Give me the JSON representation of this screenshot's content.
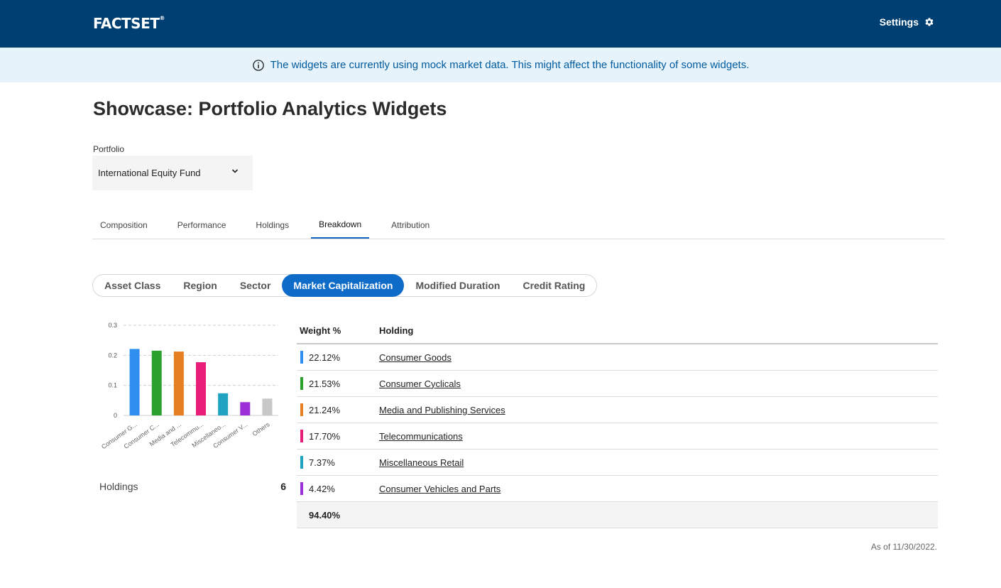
{
  "header": {
    "logo_text": "FACTSET",
    "logo_mark": "®",
    "settings_label": "Settings"
  },
  "banner": {
    "message": "The widgets are currently using mock market data. This might affect the functionality of some widgets."
  },
  "page": {
    "title": "Showcase: Portfolio Analytics Widgets"
  },
  "portfolio": {
    "label": "Portfolio",
    "selected": "International Equity Fund"
  },
  "tabs": [
    {
      "label": "Composition",
      "active": false
    },
    {
      "label": "Performance",
      "active": false
    },
    {
      "label": "Holdings",
      "active": false
    },
    {
      "label": "Breakdown",
      "active": true
    },
    {
      "label": "Attribution",
      "active": false
    }
  ],
  "breakdown_options": [
    {
      "label": "Asset Class",
      "active": false
    },
    {
      "label": "Region",
      "active": false
    },
    {
      "label": "Sector",
      "active": false
    },
    {
      "label": "Market Capitalization",
      "active": true
    },
    {
      "label": "Modified Duration",
      "active": false
    },
    {
      "label": "Credit Rating",
      "active": false
    }
  ],
  "chart_data": {
    "type": "bar",
    "title": "",
    "xlabel": "",
    "ylabel": "",
    "ylim": [
      0,
      0.3
    ],
    "yticks": [
      "0",
      "0.1",
      "0.2",
      "0.3"
    ],
    "grid": true,
    "categories": [
      "Consumer G...",
      "Consumer C...",
      "Media and ...",
      "Telecommu...",
      "Miscellaneo...",
      "Consumer V...",
      "Others"
    ],
    "values": [
      0.2212,
      0.2153,
      0.2124,
      0.177,
      0.0737,
      0.0442,
      0.056
    ],
    "colors": [
      "#2e8ff0",
      "#2ca02c",
      "#e67e22",
      "#e91e7a",
      "#1fa3c0",
      "#9b30d9",
      "#c8c8c8"
    ]
  },
  "holdings_summary": {
    "label": "Holdings",
    "count": "6"
  },
  "table": {
    "headers": {
      "weight": "Weight %",
      "holding": "Holding"
    },
    "rows": [
      {
        "weight": "22.12%",
        "holding": "Consumer Goods",
        "color": "#2e8ff0"
      },
      {
        "weight": "21.53%",
        "holding": "Consumer Cyclicals",
        "color": "#2ca02c"
      },
      {
        "weight": "21.24%",
        "holding": "Media and Publishing Services",
        "color": "#e67e22"
      },
      {
        "weight": "17.70%",
        "holding": "Telecommunications",
        "color": "#e91e7a"
      },
      {
        "weight": "7.37%",
        "holding": "Miscellaneous Retail",
        "color": "#1fa3c0"
      },
      {
        "weight": "4.42%",
        "holding": "Consumer Vehicles and Parts",
        "color": "#9b30d9"
      }
    ],
    "total": "94.40%"
  },
  "footer": {
    "as_of": "As of 11/30/2022."
  },
  "icons": {
    "settings": "gear-icon",
    "info": "info-icon",
    "dropdown": "chevron-down-icon"
  }
}
